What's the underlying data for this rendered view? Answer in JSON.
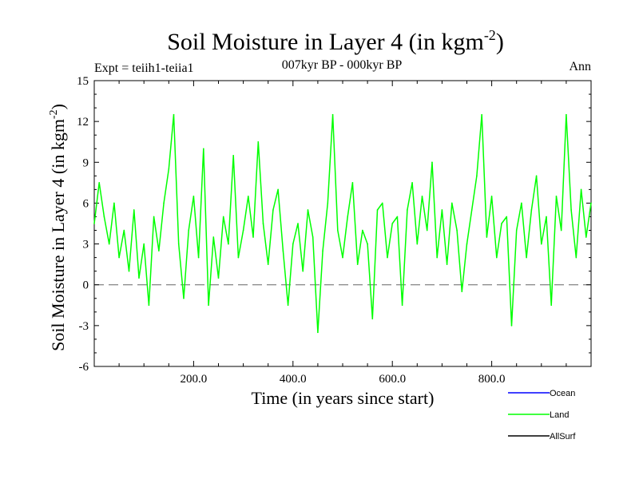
{
  "chart_data": {
    "type": "line",
    "title": "Soil Moisture in Layer 4 (in kgm",
    "title_sup": "-2",
    "title_close": ")",
    "subtitle": "007kyr BP - 000kyr BP",
    "expt_label": "Expt = teiih1-teiia1",
    "season_label": "Ann",
    "xlabel": "Time (in years since start)",
    "ylabel": "Soil Moisture in Layer 4 (in kgm",
    "ylabel_sup": "-2",
    "ylabel_close": ")",
    "xlim": [
      0,
      1000
    ],
    "ylim": [
      -6,
      15
    ],
    "x_ticks": [
      200,
      400,
      600,
      800
    ],
    "x_tick_labels": [
      "200.0",
      "400.0",
      "600.0",
      "800.0"
    ],
    "y_ticks": [
      -6,
      -3,
      0,
      3,
      6,
      9,
      12,
      15
    ],
    "y_tick_labels": [
      "-6",
      "-3",
      "0",
      "3",
      "6",
      "9",
      "12",
      "15"
    ],
    "zero_line": true,
    "grid": false,
    "legend_position": "bottom-right",
    "legend": [
      {
        "name": "Ocean",
        "color": "#0000ff"
      },
      {
        "name": "Land",
        "color": "#00ff00"
      },
      {
        "name": "AllSurf",
        "color": "#000000"
      }
    ],
    "series": [
      {
        "name": "Land",
        "color": "#00ff00",
        "x": [
          0,
          10,
          20,
          30,
          40,
          50,
          60,
          70,
          80,
          90,
          100,
          110,
          120,
          130,
          140,
          150,
          160,
          170,
          180,
          190,
          200,
          210,
          220,
          230,
          240,
          250,
          260,
          270,
          280,
          290,
          300,
          310,
          320,
          330,
          340,
          350,
          360,
          370,
          380,
          390,
          400,
          410,
          420,
          430,
          440,
          450,
          460,
          470,
          480,
          490,
          500,
          510,
          520,
          530,
          540,
          550,
          560,
          570,
          580,
          590,
          600,
          610,
          620,
          630,
          640,
          650,
          660,
          670,
          680,
          690,
          700,
          710,
          720,
          730,
          740,
          750,
          760,
          770,
          780,
          790,
          800,
          810,
          820,
          830,
          840,
          850,
          860,
          870,
          880,
          890,
          900,
          910,
          920,
          930,
          940,
          950,
          960,
          970,
          980,
          990,
          1000
        ],
        "values": [
          4.5,
          7.5,
          5.0,
          3.0,
          6.0,
          2.0,
          4.0,
          1.0,
          5.5,
          0.5,
          3.0,
          -1.5,
          5.0,
          2.5,
          6.0,
          8.5,
          12.5,
          3.0,
          -1.0,
          4.0,
          6.5,
          2.0,
          10.0,
          -1.5,
          3.5,
          0.5,
          5.0,
          3.0,
          9.5,
          2.0,
          4.0,
          6.5,
          3.5,
          10.5,
          4.5,
          1.5,
          5.5,
          7.0,
          2.5,
          -1.5,
          3.0,
          4.5,
          1.0,
          5.5,
          3.5,
          -3.5,
          2.5,
          6.0,
          12.5,
          4.0,
          2.0,
          5.0,
          7.5,
          1.5,
          4.0,
          3.0,
          -2.5,
          5.5,
          6.0,
          2.0,
          4.5,
          5.0,
          -1.5,
          5.5,
          7.5,
          3.0,
          6.5,
          4.0,
          9.0,
          2.0,
          5.5,
          1.5,
          6.0,
          4.0,
          -0.5,
          3.0,
          5.5,
          8.0,
          12.5,
          3.5,
          6.5,
          2.0,
          4.5,
          5.0,
          -3.0,
          4.0,
          6.0,
          2.0,
          5.5,
          8.0,
          3.0,
          5.0,
          -1.5,
          6.5,
          4.0,
          12.5,
          5.5,
          2.0,
          7.0,
          3.5,
          6.0
        ]
      }
    ]
  }
}
